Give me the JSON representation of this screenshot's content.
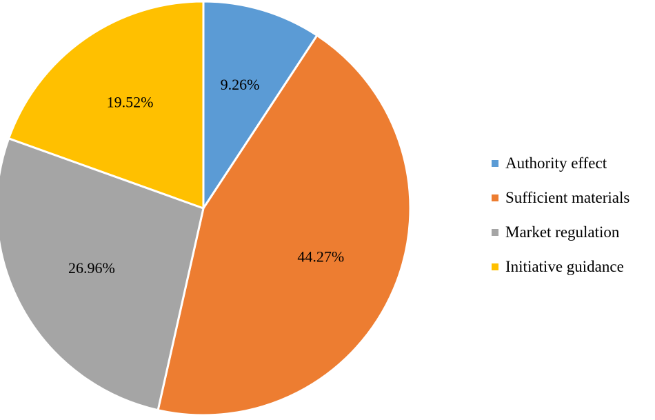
{
  "chart_data": {
    "type": "pie",
    "categories": [
      "Authority effect",
      "Sufficient materials",
      "Market regulation",
      "Initiative guidance"
    ],
    "values": [
      9.26,
      44.27,
      26.96,
      19.52
    ],
    "labels": [
      "9.26%",
      "44.27%",
      "26.96%",
      "19.52%"
    ],
    "colors": [
      "#5B9BD5",
      "#ED7D31",
      "#A5A5A5",
      "#FFC000"
    ],
    "legend_position": "right",
    "start_angle": "top",
    "direction": "clockwise"
  }
}
